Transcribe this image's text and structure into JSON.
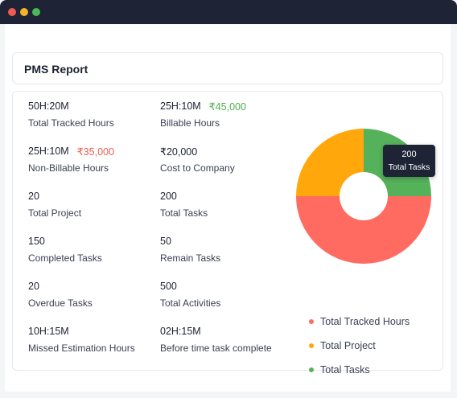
{
  "report": {
    "title": "PMS Report"
  },
  "stats": [
    {
      "value": "50H:20M",
      "label": "Total Tracked Hours",
      "money": ""
    },
    {
      "value": "25H:10M",
      "label": "Billable Hours",
      "money": "₹45,000",
      "money_color": "#4caf50"
    },
    {
      "value": "25H:10M",
      "label": "Non-Billable Hours",
      "money": "₹35,000",
      "money_color": "#ef5b52"
    },
    {
      "value": "₹20,000",
      "label": "Cost to Company",
      "money": ""
    },
    {
      "value": "20",
      "label": "Total Project",
      "money": ""
    },
    {
      "value": "200",
      "label": "Total Tasks",
      "money": ""
    },
    {
      "value": "150",
      "label": "Completed Tasks",
      "money": ""
    },
    {
      "value": "50",
      "label": "Remain Tasks",
      "money": ""
    },
    {
      "value": "20",
      "label": "Overdue Tasks",
      "money": ""
    },
    {
      "value": "500",
      "label": "Total Activities",
      "money": ""
    },
    {
      "value": "10H:15M",
      "label": "Missed Estimation Hours",
      "money": ""
    },
    {
      "value": "02H:15M",
      "label": "Before time task complete",
      "money": ""
    }
  ],
  "tooltip": {
    "value": "200",
    "label": "Total Tasks"
  },
  "chart_data": {
    "type": "pie",
    "subtype": "donut",
    "slices": [
      {
        "label": "Total Tracked Hours",
        "share": 0.5,
        "color": "#ff6b61"
      },
      {
        "label": "Total Project",
        "share": 0.25,
        "color": "#ffa70b"
      },
      {
        "label": "Total Tasks",
        "share": 0.25,
        "color": "#55b25b"
      }
    ],
    "legend_position": "bottom"
  },
  "legend": [
    {
      "label": "Total Tracked Hours",
      "color": "#ff6b61"
    },
    {
      "label": "Total Project",
      "color": "#ffa70b"
    },
    {
      "label": "Total Tasks",
      "color": "#55b25b"
    }
  ],
  "colors": {
    "titlebar": "#1e2436",
    "close": "#ef5b52",
    "minimize": "#f4b32b",
    "maximize": "#49b957"
  }
}
